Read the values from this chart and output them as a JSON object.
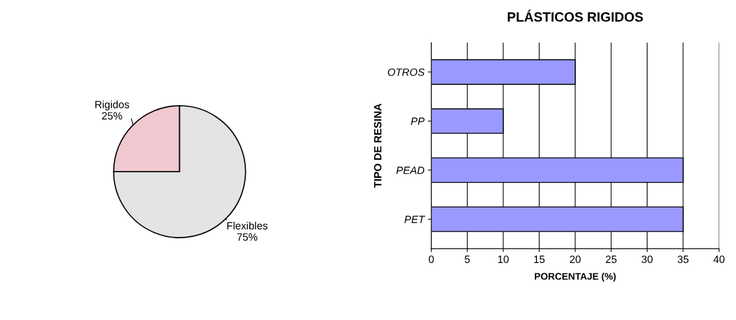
{
  "chart_data": [
    {
      "type": "pie",
      "categories": [
        "Rigidos",
        "Flexibles"
      ],
      "values": [
        25,
        75
      ],
      "colors": [
        "#f0c8d0",
        "#e4e4e4"
      ],
      "value_labels": [
        "25%",
        "75%"
      ]
    },
    {
      "type": "bar",
      "orientation": "horizontal",
      "title": "PLÁSTICOS RIGIDOS",
      "xlabel": "PORCENTAJE (%)",
      "ylabel": "TIPO DE RESINA",
      "categories": [
        "OTROS",
        "PP",
        "PEAD",
        "PET"
      ],
      "series": [
        {
          "color": "#9999ff",
          "values": [
            20,
            10,
            35,
            35
          ]
        }
      ],
      "xlim": [
        0,
        40
      ],
      "xticks": [
        0,
        5,
        10,
        15,
        20,
        25,
        30,
        35,
        40
      ],
      "grid": "x",
      "legend": false
    }
  ]
}
